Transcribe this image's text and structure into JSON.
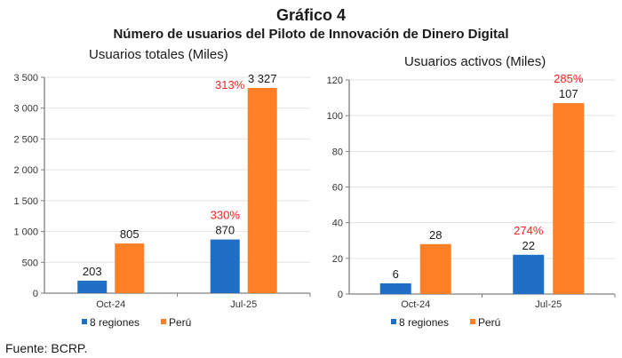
{
  "header": {
    "title": "Gráfico 4",
    "subtitle": "Número de usuarios del Piloto de Innovación de Dinero Digital"
  },
  "source": "Fuente: BCRP.",
  "colors": {
    "series1": "#1f6fc7",
    "series2": "#ff7f27",
    "growth": "#ff2020",
    "grid": "#e3e3e3",
    "axis": "#808080"
  },
  "chart_data": [
    {
      "type": "bar",
      "title": "Usuarios totales (Miles)",
      "xlabel": "",
      "ylabel": "",
      "categories": [
        "Oct-24",
        "Jul-25"
      ],
      "series": [
        {
          "name": "8 regiones",
          "values": [
            203,
            870
          ],
          "value_labels": [
            "203",
            "870"
          ]
        },
        {
          "name": "Perú",
          "values": [
            805,
            3327
          ],
          "value_labels": [
            "805",
            "3 327"
          ]
        }
      ],
      "annotations": [
        {
          "series": "8 regiones",
          "category": "Jul-25",
          "text": "330%"
        },
        {
          "series": "Perú",
          "category": "Jul-25",
          "text": "313%"
        }
      ],
      "ylim": [
        0,
        3500
      ],
      "yticks": [
        0,
        500,
        1000,
        1500,
        2000,
        2500,
        3000,
        3500
      ],
      "ytick_labels": [
        "0",
        "500",
        "1 000",
        "1 500",
        "2 000",
        "2 500",
        "3 000",
        "3 500"
      ],
      "grid": true,
      "legend": "bottom"
    },
    {
      "type": "bar",
      "title": "Usuarios activos (Miles)",
      "xlabel": "",
      "ylabel": "",
      "categories": [
        "Oct-24",
        "Jul-25"
      ],
      "series": [
        {
          "name": "8 regiones",
          "values": [
            6,
            22
          ],
          "value_labels": [
            "6",
            "22"
          ]
        },
        {
          "name": "Perú",
          "values": [
            28,
            107
          ],
          "value_labels": [
            "28",
            "107"
          ]
        }
      ],
      "annotations": [
        {
          "series": "8 regiones",
          "category": "Jul-25",
          "text": "274%"
        },
        {
          "series": "Perú",
          "category": "Jul-25",
          "text": "285%"
        }
      ],
      "ylim": [
        0,
        120
      ],
      "yticks": [
        0,
        20,
        40,
        60,
        80,
        100,
        120
      ],
      "ytick_labels": [
        "0",
        "20",
        "40",
        "60",
        "80",
        "100",
        "120"
      ],
      "grid": true,
      "legend": "bottom"
    }
  ]
}
